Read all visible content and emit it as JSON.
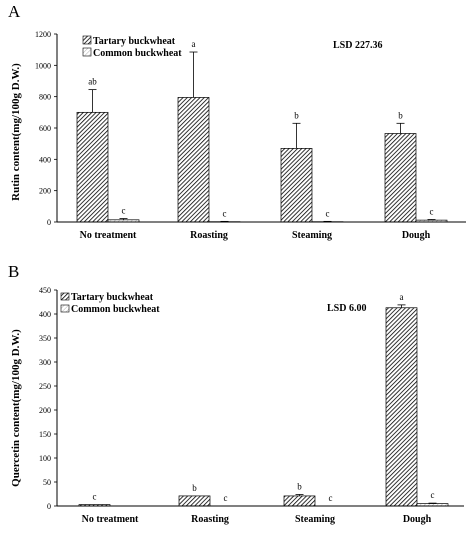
{
  "chart_data": [
    {
      "panel": "A",
      "type": "bar",
      "title": "",
      "ylabel": "Rutin content(mg/100g D.W.)",
      "xlabel": "",
      "ylim": [
        0,
        1200
      ],
      "yticks": [
        0,
        200,
        400,
        600,
        800,
        1000,
        1200
      ],
      "categories": [
        "No treatment",
        "Roasting",
        "Steaming",
        "Dough"
      ],
      "series": [
        {
          "name": "Tartary buckwheat",
          "values": [
            700,
            795,
            470,
            565
          ],
          "errors": [
            145,
            290,
            160,
            65
          ],
          "labels": [
            "ab",
            "a",
            "b",
            "b"
          ]
        },
        {
          "name": "Common buckwheat",
          "values": [
            14,
            2,
            2,
            12
          ],
          "errors": [
            8,
            2,
            2,
            4
          ],
          "labels": [
            "c",
            "c",
            "c",
            "c"
          ]
        }
      ],
      "annotation": "LSD 227.36",
      "legend": "top-left",
      "grid": false
    },
    {
      "panel": "B",
      "type": "bar",
      "title": "",
      "ylabel": "Quercetin content(mg/100g D.W.)",
      "xlabel": "",
      "ylim": [
        0,
        450
      ],
      "yticks": [
        0,
        50,
        100,
        150,
        200,
        250,
        300,
        350,
        400,
        450
      ],
      "categories": [
        "No treatment",
        "Roasting",
        "Steaming",
        "Dough"
      ],
      "series": [
        {
          "name": "Tartary buckwheat",
          "values": [
            3,
            21,
            21,
            413
          ],
          "errors": [
            0,
            0,
            3,
            6
          ],
          "labels": [
            "c",
            "b",
            "b",
            "a"
          ]
        },
        {
          "name": "Common buckwheat",
          "values": [
            0,
            0,
            0,
            5
          ],
          "errors": [
            0,
            0,
            0,
            1
          ],
          "labels": [
            "",
            "c",
            "c",
            "c"
          ]
        }
      ],
      "annotation": "LSD 6.00",
      "legend": "top-left",
      "grid": false
    }
  ]
}
